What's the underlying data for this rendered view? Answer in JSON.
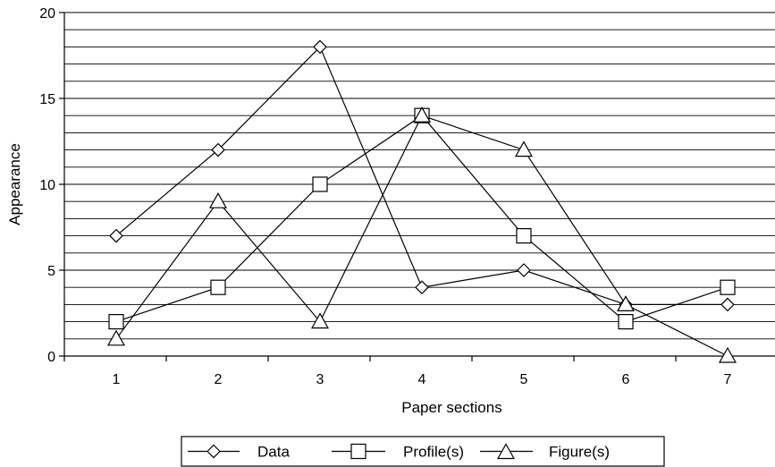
{
  "chart_data": {
    "type": "line",
    "categories": [
      "1",
      "2",
      "3",
      "4",
      "5",
      "6",
      "7"
    ],
    "x": [
      1,
      2,
      3,
      4,
      5,
      6,
      7
    ],
    "series": [
      {
        "name": "Data",
        "marker": "diamond",
        "values": [
          7,
          12,
          18,
          4,
          5,
          3,
          3
        ]
      },
      {
        "name": "Profile(s)",
        "marker": "square",
        "values": [
          2,
          4,
          10,
          14,
          7,
          2,
          4
        ]
      },
      {
        "name": "Figure(s)",
        "marker": "triangle",
        "values": [
          1,
          9,
          2,
          14,
          12,
          3,
          0
        ]
      }
    ],
    "title": "",
    "xlabel": "Paper sections",
    "ylabel": "Appearance",
    "ylim": [
      0,
      20
    ],
    "yticks": [
      "0",
      "5",
      "10",
      "15",
      "20"
    ],
    "grid": "horizontal minor lines every 1 unit",
    "legend": "bottom-center",
    "colors": {
      "line": "#000000",
      "marker_fill": "#ffffff",
      "grid": "#000000"
    }
  }
}
